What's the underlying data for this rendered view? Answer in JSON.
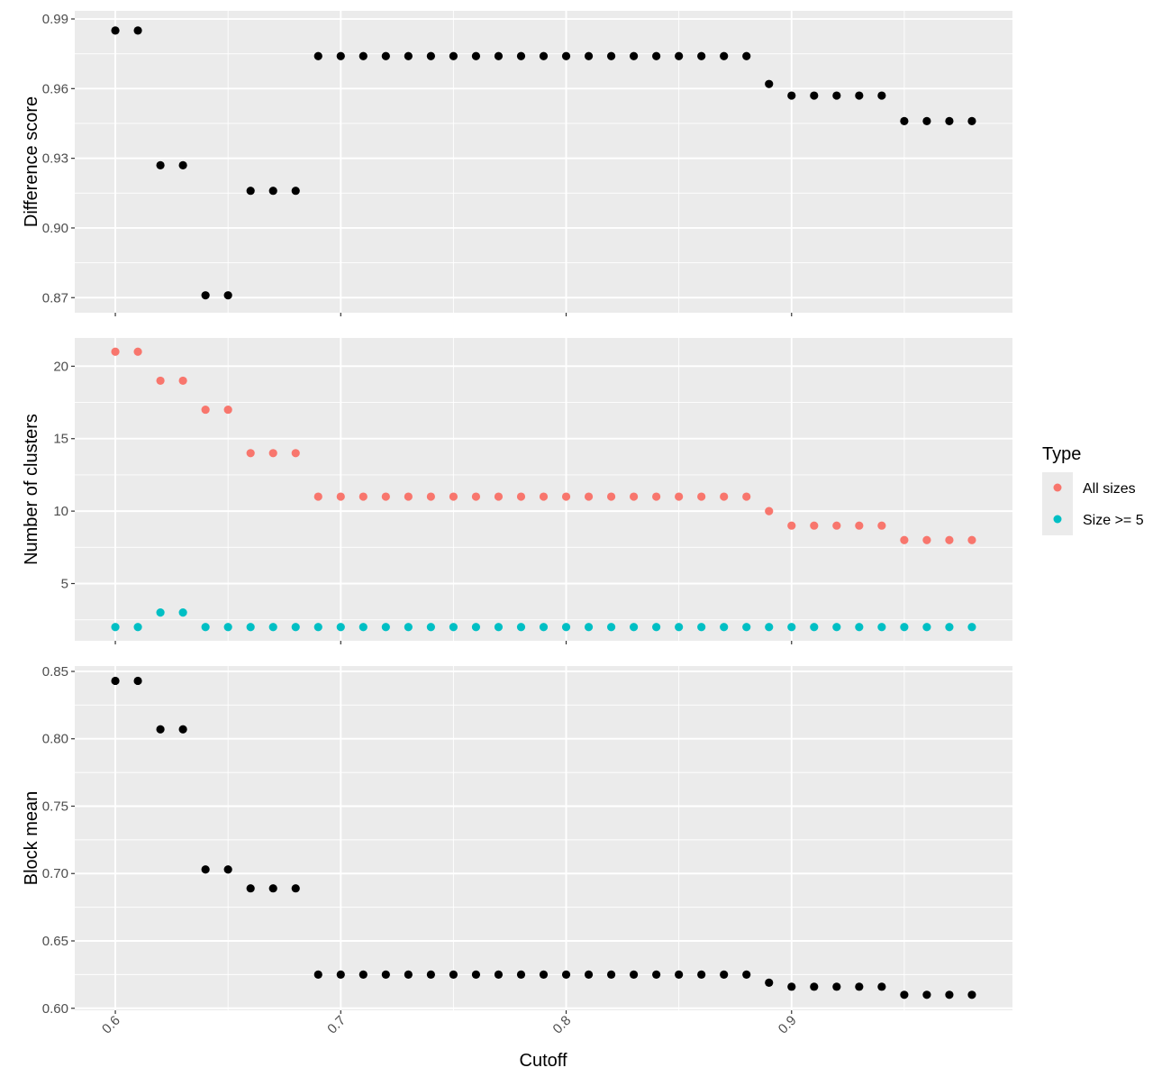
{
  "chart_data": {
    "type": "scatter",
    "x_label": "Cutoff",
    "x_range": [
      0.582,
      0.998
    ],
    "x_ticks": [
      0.6,
      0.7,
      0.8,
      0.9
    ],
    "x_tick_labels": [
      "0.6",
      "0.7",
      "0.8",
      "0.9"
    ],
    "x": [
      0.6,
      0.61,
      0.62,
      0.63,
      0.64,
      0.65,
      0.66,
      0.67,
      0.68,
      0.69,
      0.7,
      0.71,
      0.72,
      0.73,
      0.74,
      0.75,
      0.76,
      0.77,
      0.78,
      0.79,
      0.8,
      0.81,
      0.82,
      0.83,
      0.84,
      0.85,
      0.86,
      0.87,
      0.88,
      0.89,
      0.9,
      0.91,
      0.92,
      0.93,
      0.94,
      0.95,
      0.96,
      0.97,
      0.98
    ],
    "grid": true,
    "legend": {
      "title": "Type",
      "placement": "right",
      "entries": [
        {
          "label": "All sizes",
          "color": "#F8766D"
        },
        {
          "label": "Size >= 5",
          "color": "#00BFC4"
        }
      ]
    },
    "panels": [
      {
        "ylabel": "Difference score",
        "ylim": [
          0.8635,
          0.9935
        ],
        "y_ticks": [
          0.87,
          0.9,
          0.93,
          0.96,
          0.99
        ],
        "y_tick_labels": [
          "0.87",
          "0.90",
          "0.93",
          "0.96",
          "0.99"
        ],
        "series": [
          {
            "color": "#000000",
            "values": [
              0.985,
              0.985,
              0.927,
              0.927,
              0.871,
              0.871,
              0.916,
              0.916,
              0.916,
              0.974,
              0.974,
              0.974,
              0.974,
              0.974,
              0.974,
              0.974,
              0.974,
              0.974,
              0.974,
              0.974,
              0.974,
              0.974,
              0.974,
              0.974,
              0.974,
              0.974,
              0.974,
              0.974,
              0.974,
              0.962,
              0.957,
              0.957,
              0.957,
              0.957,
              0.957,
              0.946,
              0.946,
              0.946,
              0.946
            ]
          }
        ]
      },
      {
        "ylabel": "Number of clusters",
        "ylim": [
          1.05,
          21.95
        ],
        "y_ticks": [
          5,
          10,
          15,
          20
        ],
        "y_tick_labels": [
          "5",
          "10",
          "15",
          "20"
        ],
        "series": [
          {
            "name": "All sizes",
            "color": "#F8766D",
            "values": [
              21,
              21,
              19,
              19,
              17,
              17,
              14,
              14,
              14,
              11,
              11,
              11,
              11,
              11,
              11,
              11,
              11,
              11,
              11,
              11,
              11,
              11,
              11,
              11,
              11,
              11,
              11,
              11,
              11,
              10,
              9,
              9,
              9,
              9,
              9,
              8,
              8,
              8,
              8
            ]
          },
          {
            "name": "Size >= 5",
            "color": "#00BFC4",
            "values": [
              2,
              2,
              3,
              3,
              2,
              2,
              2,
              2,
              2,
              2,
              2,
              2,
              2,
              2,
              2,
              2,
              2,
              2,
              2,
              2,
              2,
              2,
              2,
              2,
              2,
              2,
              2,
              2,
              2,
              2,
              2,
              2,
              2,
              2,
              2,
              2,
              2,
              2,
              2
            ]
          }
        ]
      },
      {
        "ylabel": "Block mean",
        "ylim": [
          0.5985,
          0.854
        ],
        "y_ticks": [
          0.6,
          0.65,
          0.7,
          0.75,
          0.8,
          0.85
        ],
        "y_tick_labels": [
          "0.60",
          "0.65",
          "0.70",
          "0.75",
          "0.80",
          "0.85"
        ],
        "series": [
          {
            "color": "#000000",
            "values": [
              0.843,
              0.843,
              0.807,
              0.807,
              0.703,
              0.703,
              0.689,
              0.689,
              0.689,
              0.625,
              0.625,
              0.625,
              0.625,
              0.625,
              0.625,
              0.625,
              0.625,
              0.625,
              0.625,
              0.625,
              0.625,
              0.625,
              0.625,
              0.625,
              0.625,
              0.625,
              0.625,
              0.625,
              0.625,
              0.619,
              0.616,
              0.616,
              0.616,
              0.616,
              0.616,
              0.61,
              0.61,
              0.61,
              0.61
            ]
          }
        ]
      }
    ]
  }
}
